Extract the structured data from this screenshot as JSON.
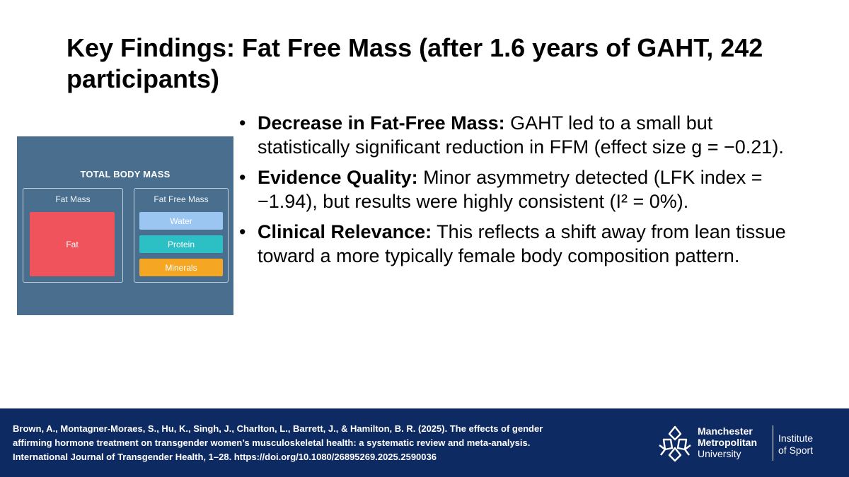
{
  "title": "Key Findings: Fat Free Mass (after 1.6 years of GAHT, 242 participants)",
  "figure": {
    "heading": "TOTAL BODY MASS",
    "fat_label": "Fat Mass",
    "fat_block": "Fat",
    "ffm_label": "Fat Free Mass",
    "components": [
      "Water",
      "Protein",
      "Minerals"
    ],
    "colors": {
      "background": "#4a6f8e",
      "fat": "#f0535b",
      "water": "#9cc6f2",
      "protein": "#2cc0c5",
      "minerals": "#f5a623"
    }
  },
  "bullets": [
    {
      "heading": "Decrease in Fat-Free Mass:",
      "text": " GAHT led to a small but statistically significant reduction in FFM (effect size g = −0.21)."
    },
    {
      "heading": "Evidence Quality:",
      "text": " Minor asymmetry detected (LFK index = −1.94), but results were highly consistent (I² = 0%)."
    },
    {
      "heading": "Clinical Relevance:",
      "text": " This reflects a shift away from lean tissue toward a more typically female body composition pattern."
    }
  ],
  "footer": {
    "citation_line1": "Brown, A., Montagner-Moraes, S., Hu, K., Singh, J., Charlton, L., Barrett, J., & Hamilton, B. R. (2025). The effects of gender",
    "citation_line2": "affirming hormone treatment on transgender women’s musculoskeletal health: a systematic review and meta-analysis.",
    "citation_line3": "International Journal of Transgender Health, 1–28. https://doi.org/10.1080/26895269.2025.2590036",
    "logo_line1": "Manchester",
    "logo_line2": "Metropolitan",
    "logo_line3": "University",
    "institute_line1": "Institute",
    "institute_line2": "of Sport",
    "logo_icon": "antelope-logo-icon",
    "colors": {
      "background": "#0e2a63",
      "text": "#ffffff"
    }
  },
  "bullet_glyph": "•"
}
